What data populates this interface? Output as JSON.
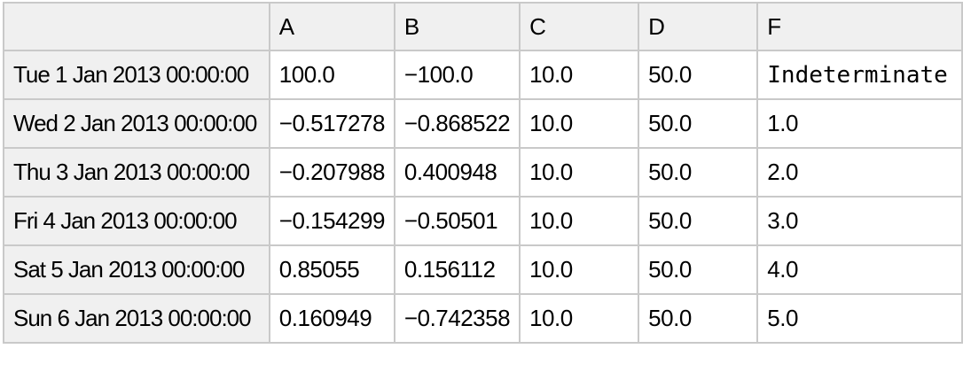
{
  "table": {
    "index_header": "",
    "columns": [
      "A",
      "B",
      "C",
      "D",
      "F"
    ],
    "rows": [
      {
        "index": "Tue 1 Jan 2013 00:00:00",
        "values": [
          "100.0",
          "−100.0",
          "10.0",
          "50.0",
          "Indeterminate"
        ]
      },
      {
        "index": "Wed 2 Jan 2013 00:00:00",
        "values": [
          "−0.517278",
          "−0.868522",
          "10.0",
          "50.0",
          "1.0"
        ]
      },
      {
        "index": "Thu 3 Jan 2013 00:00:00",
        "values": [
          "−0.207988",
          "0.400948",
          "10.0",
          "50.0",
          "2.0"
        ]
      },
      {
        "index": "Fri 4 Jan 2013 00:00:00",
        "values": [
          "−0.154299",
          "−0.50501",
          "10.0",
          "50.0",
          "3.0"
        ]
      },
      {
        "index": "Sat 5 Jan 2013 00:00:00",
        "values": [
          "0.85055",
          "0.156112",
          "10.0",
          "50.0",
          "4.0"
        ]
      },
      {
        "index": "Sun 6 Jan 2013 00:00:00",
        "values": [
          "0.160949",
          "−0.742358",
          "10.0",
          "50.0",
          "5.0"
        ]
      }
    ],
    "colors": {
      "border": "#c9c9c9",
      "header_bg": "#f0f0f0",
      "cell_bg": "#ffffff",
      "text": "#000000"
    }
  }
}
